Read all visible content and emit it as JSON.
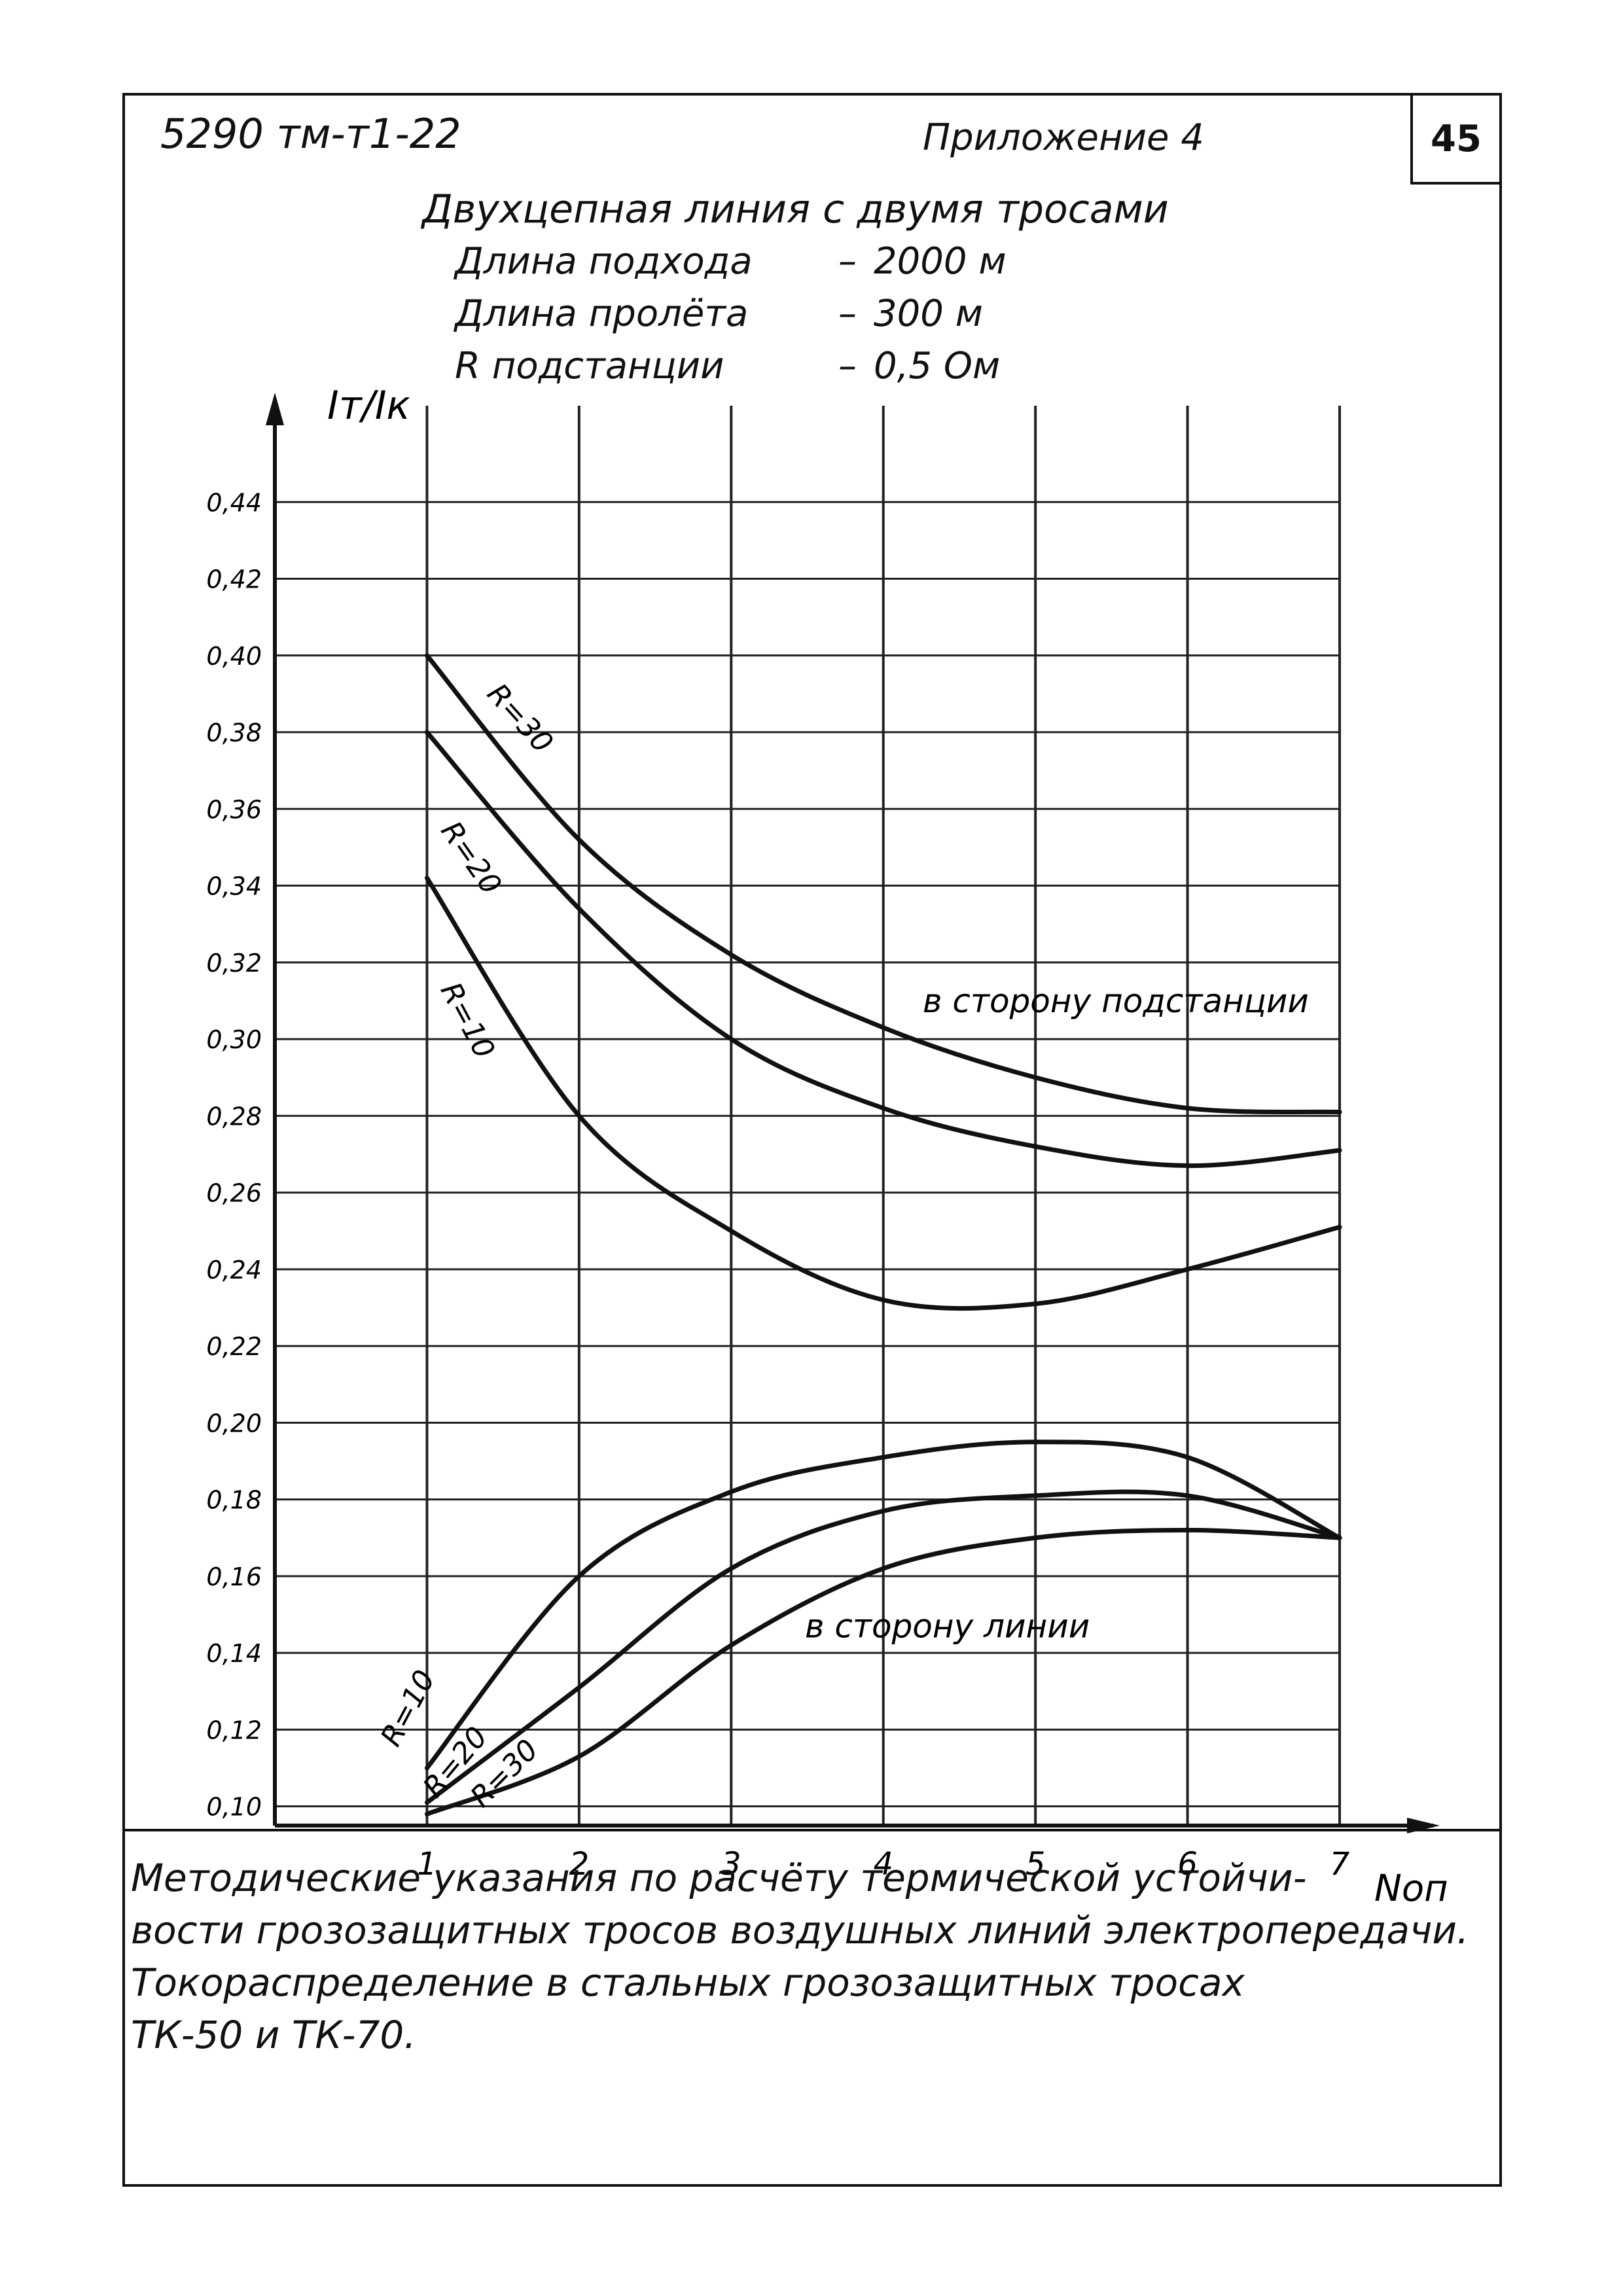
{
  "header": {
    "doc_code": "5290 тм-т1-22",
    "appendix": "Приложение 4",
    "sheet_number": "45"
  },
  "title": {
    "line1": "Двухцепная линия с двумя тросами",
    "rows": [
      {
        "label": "Длина подхода",
        "value": "2000 м"
      },
      {
        "label": "Длина пролёта",
        "value": "300 м"
      },
      {
        "label": "R подстанции",
        "value": "0,5 Ом"
      }
    ]
  },
  "chart_data": {
    "type": "line",
    "ylabel": "Iт/Iк",
    "xlabel": "Nоп",
    "x_ticks": [
      "1",
      "2",
      "3",
      "4",
      "5",
      "6",
      "7"
    ],
    "y_ticks": [
      "0,10",
      "0,12",
      "0,14",
      "0,16",
      "0,18",
      "0,20",
      "0,22",
      "0,24",
      "0,26",
      "0,28",
      "0,30",
      "0,32",
      "0,34",
      "0,36",
      "0,38",
      "0,40",
      "0,42",
      "0,44"
    ],
    "xlim": [
      0,
      7.4
    ],
    "ylim": [
      0.095,
      0.46
    ],
    "grid": true,
    "group_labels": [
      "в сторону подстанции",
      "в сторону линии"
    ],
    "series": [
      {
        "name": "R=30",
        "group": "в сторону подстанции",
        "x": [
          1,
          2,
          3,
          4,
          5,
          6,
          7
        ],
        "values": [
          0.4,
          0.352,
          0.322,
          0.303,
          0.29,
          0.282,
          0.281
        ]
      },
      {
        "name": "R=20",
        "group": "в сторону подстанции",
        "x": [
          1,
          2,
          3,
          4,
          5,
          6,
          7
        ],
        "values": [
          0.38,
          0.334,
          0.3,
          0.282,
          0.272,
          0.267,
          0.271
        ]
      },
      {
        "name": "R=10",
        "group": "в сторону подстанции",
        "x": [
          1,
          2,
          3,
          4,
          5,
          6,
          7
        ],
        "values": [
          0.342,
          0.28,
          0.25,
          0.232,
          0.231,
          0.24,
          0.251
        ]
      },
      {
        "name": "R=10",
        "group": "в сторону линии",
        "x": [
          1,
          2,
          3,
          4,
          5,
          6,
          7
        ],
        "values": [
          0.11,
          0.16,
          0.182,
          0.191,
          0.195,
          0.191,
          0.17
        ]
      },
      {
        "name": "R=20",
        "group": "в сторону линии",
        "x": [
          1,
          2,
          3,
          4,
          5,
          6,
          7
        ],
        "values": [
          0.101,
          0.131,
          0.162,
          0.177,
          0.181,
          0.181,
          0.17
        ]
      },
      {
        "name": "R=30",
        "group": "в сторону линии",
        "x": [
          1,
          2,
          3,
          4,
          5,
          6,
          7
        ],
        "values": [
          0.098,
          0.113,
          0.142,
          0.162,
          0.17,
          0.172,
          0.17
        ]
      }
    ]
  },
  "footer": {
    "lines": [
      "Методические указания по расчёту термической устойчи-",
      "вости грозозащитных тросов воздушных линий электропередачи.",
      "Токораспределение в стальных грозозащитных тросах",
      "ТК-50 и ТК-70."
    ]
  }
}
